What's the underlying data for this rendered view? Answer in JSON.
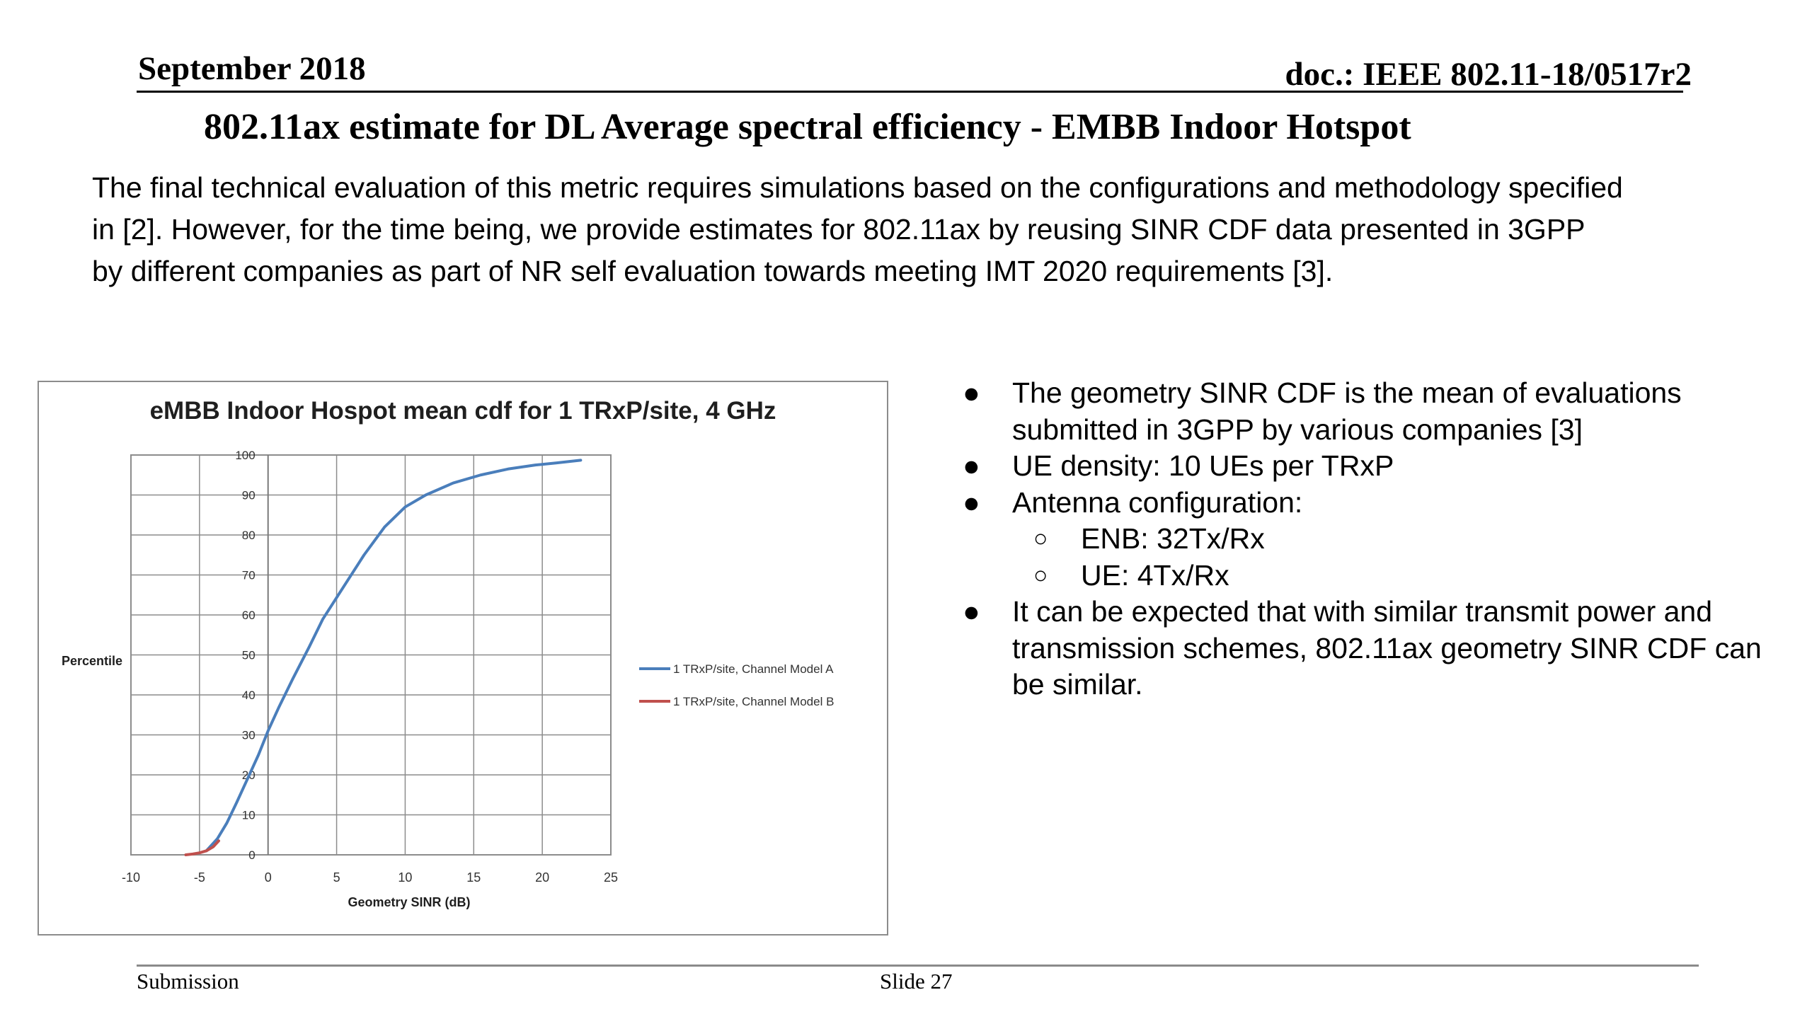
{
  "header": {
    "date": "September  2018",
    "doc": "doc.: IEEE 802.11-18/0517r2"
  },
  "title": "802.11ax estimate for DL Average spectral efficiency - EMBB Indoor Hotspot",
  "intro": {
    "line1": "The final technical evaluation of this metric requires simulations based on the configurations and methodology specified",
    "line2": "in [2]. However, for the time being, we provide estimates for 802.11ax by  reusing SINR CDF data presented in 3GPP",
    "line3": "by different companies as part of NR self evaluation towards meeting IMT 2020 requirements [3]."
  },
  "bullets": {
    "b1_line1": "The geometry SINR CDF is the mean of evaluations",
    "b1_line2": "submitted in 3GPP by various companies  [3]",
    "b2": "UE density: 10 UEs per TRxP",
    "b3": "Antenna configuration:",
    "b3_sub1": "ENB: 32Tx/Rx",
    "b3_sub2": "UE: 4Tx/Rx",
    "b4_line1": "It can be expected  that with similar transmit power and",
    "b4_line2": "transmission schemes, 802.11ax geometry SINR CDF can",
    "b4_line3": "be similar.",
    "bullet_glyph": "●",
    "sub_glyph": "○"
  },
  "footer": {
    "left": "Submission",
    "center": "Slide 27"
  },
  "chart_data": {
    "type": "line",
    "title": "eMBB Indoor Hospot mean cdf for 1 TRxP/site, 4 GHz",
    "xlabel": "Geometry SINR (dB)",
    "ylabel": "Percentile",
    "xlim": [
      -10,
      25
    ],
    "ylim": [
      0,
      100
    ],
    "xticks": [
      -10,
      -5,
      0,
      5,
      10,
      15,
      20,
      25
    ],
    "yticks": [
      0,
      10,
      20,
      30,
      40,
      50,
      60,
      70,
      80,
      90,
      100
    ],
    "grid": true,
    "legend_position": "right",
    "series": [
      {
        "name": "1 TRxP/site, Channel  Model A",
        "color": "#4a7ebb",
        "x": [
          -4.5,
          -3.7,
          -3.0,
          -2.3,
          -1.5,
          -0.7,
          0.0,
          0.8,
          1.8,
          3.0,
          4.0,
          5.5,
          7.0,
          8.5,
          10.0,
          11.5,
          13.5,
          15.5,
          17.5,
          19.5,
          21.0,
          22.8
        ],
        "y": [
          1,
          4,
          8,
          13,
          19,
          25,
          31,
          37,
          44,
          52,
          59,
          67,
          75,
          82,
          87,
          90,
          93,
          95,
          96.5,
          97.5,
          98,
          98.7
        ]
      },
      {
        "name": "1 TRxP/site, Channel  Model B",
        "color": "#c0504d",
        "x": [
          -6.0,
          -5.5,
          -5.0,
          -4.5,
          -4.0,
          -3.6
        ],
        "y": [
          0,
          0.2,
          0.5,
          1,
          2,
          3.5
        ]
      }
    ]
  }
}
